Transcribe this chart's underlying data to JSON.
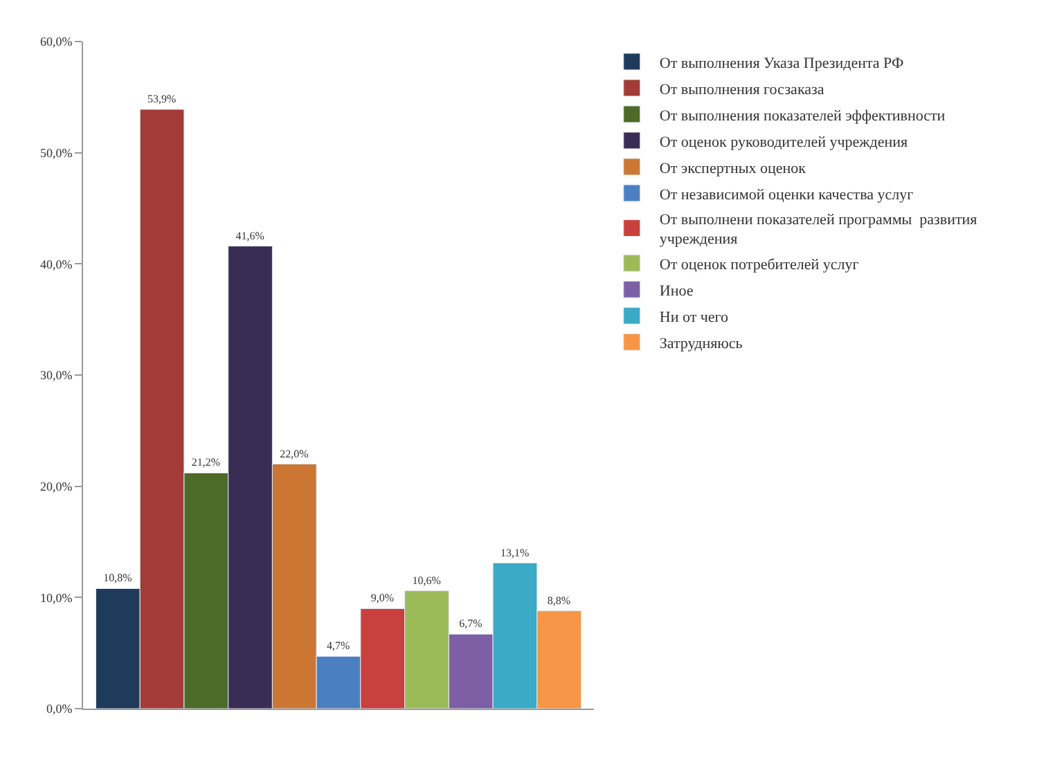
{
  "chart_data": {
    "type": "bar",
    "categories": [
      null
    ],
    "series": [
      {
        "name": "От выполнения Указа Президента РФ",
        "color": "#1f3b5c",
        "values": [
          10.8
        ],
        "value_labels": [
          "10,8%"
        ]
      },
      {
        "name": "От выполнения госзаказа",
        "color": "#a33b37",
        "values": [
          53.9
        ],
        "value_labels": [
          "53,9%"
        ]
      },
      {
        "name": "От выполнения показателей эффективности",
        "color": "#4e6a28",
        "values": [
          21.2
        ],
        "value_labels": [
          "21,2%"
        ]
      },
      {
        "name": "От оценок руководителей учреждения",
        "color": "#3a2d55",
        "values": [
          41.6
        ],
        "value_labels": [
          "41,6%"
        ]
      },
      {
        "name": "От экспертных оценок",
        "color": "#cb7733",
        "values": [
          22.0
        ],
        "value_labels": [
          "22,0%"
        ]
      },
      {
        "name": "От независимой оценки качества услуг",
        "color": "#4a80c2",
        "values": [
          4.7
        ],
        "value_labels": [
          "4,7%"
        ]
      },
      {
        "name": "От выполнени показателей программы  развития учреждения",
        "color": "#c9403c",
        "values": [
          9.0
        ],
        "value_labels": [
          "9,0%"
        ]
      },
      {
        "name": "От оценок потребителей услуг",
        "color": "#9bbb59",
        "values": [
          10.6
        ],
        "value_labels": [
          "10,6%"
        ]
      },
      {
        "name": "Иное",
        "color": "#7d5fa6",
        "values": [
          6.7
        ],
        "value_labels": [
          "6,7%"
        ]
      },
      {
        "name": "Ни от чего",
        "color": "#3aaac6",
        "values": [
          13.1
        ],
        "value_labels": [
          "13,1%"
        ]
      },
      {
        "name": "Затрудняюсь",
        "color": "#f79646",
        "values": [
          8.8
        ],
        "value_labels": [
          "8,8%"
        ]
      }
    ],
    "ylim": [
      0,
      60
    ],
    "yticks": [
      {
        "value": 0,
        "label": "0,0%"
      },
      {
        "value": 10,
        "label": "10,0%"
      },
      {
        "value": 20,
        "label": "20,0%"
      },
      {
        "value": 30,
        "label": "30,0%"
      },
      {
        "value": 40,
        "label": "40,0%"
      },
      {
        "value": 50,
        "label": "50,0%"
      },
      {
        "value": 60,
        "label": "60,0%"
      }
    ],
    "legend": "right"
  }
}
